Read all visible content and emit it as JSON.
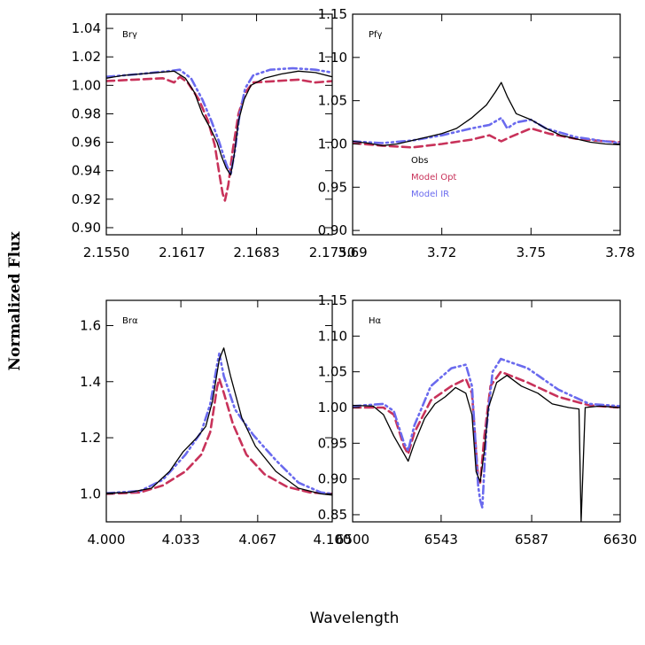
{
  "figure": {
    "ylabel": "Normalized Flux",
    "xlabel": "Wavelength"
  },
  "colors": {
    "obs": "#000000",
    "opt": "#c8325a",
    "ir": "#6a6aee"
  },
  "legend": {
    "obs": "Obs",
    "opt": "Model Opt",
    "ir": "Model IR"
  },
  "chart_data": [
    {
      "type": "line",
      "label": "Brγ",
      "xlim": [
        2.155,
        2.175
      ],
      "ylim": [
        0.895,
        1.05
      ],
      "xticks": [
        "2.1550",
        "2.1617",
        "2.1683",
        "2.1750"
      ],
      "xtick_values": [
        2.155,
        2.1617,
        2.1683,
        2.175
      ],
      "yticks": [
        "0.90",
        "0.92",
        "0.94",
        "0.96",
        "0.98",
        "1.00",
        "1.02",
        "1.04"
      ],
      "ytick_values": [
        0.9,
        0.92,
        0.94,
        0.96,
        0.98,
        1.0,
        1.02,
        1.04
      ],
      "series": [
        {
          "id": "obs",
          "points": [
            [
              2.155,
              1.005
            ],
            [
              2.1565,
              1.007
            ],
            [
              2.158,
              1.008
            ],
            [
              2.1595,
              1.009
            ],
            [
              2.161,
              1.01
            ],
            [
              2.162,
              1.005
            ],
            [
              2.1628,
              0.995
            ],
            [
              2.1635,
              0.98
            ],
            [
              2.1642,
              0.97
            ],
            [
              2.1648,
              0.96
            ],
            [
              2.1652,
              0.95
            ],
            [
              2.1656,
              0.942
            ],
            [
              2.166,
              0.937
            ],
            [
              2.1663,
              0.95
            ],
            [
              2.1667,
              0.975
            ],
            [
              2.1672,
              0.99
            ],
            [
              2.1678,
              1.0
            ],
            [
              2.169,
              1.005
            ],
            [
              2.1705,
              1.008
            ],
            [
              2.172,
              1.01
            ],
            [
              2.1735,
              1.009
            ],
            [
              2.175,
              1.006
            ]
          ]
        },
        {
          "id": "opt",
          "points": [
            [
              2.155,
              1.003
            ],
            [
              2.1575,
              1.004
            ],
            [
              2.16,
              1.005
            ],
            [
              2.161,
              1.002
            ],
            [
              2.1615,
              1.006
            ],
            [
              2.1622,
              1.002
            ],
            [
              2.1632,
              0.99
            ],
            [
              2.164,
              0.975
            ],
            [
              2.1646,
              0.958
            ],
            [
              2.165,
              0.938
            ],
            [
              2.1653,
              0.924
            ],
            [
              2.1655,
              0.919
            ],
            [
              2.1658,
              0.93
            ],
            [
              2.1662,
              0.955
            ],
            [
              2.1667,
              0.98
            ],
            [
              2.1673,
              0.995
            ],
            [
              2.168,
              1.002
            ],
            [
              2.17,
              1.003
            ],
            [
              2.172,
              1.004
            ],
            [
              2.1735,
              1.002
            ],
            [
              2.175,
              1.003
            ]
          ]
        },
        {
          "id": "ir",
          "points": [
            [
              2.155,
              1.006
            ],
            [
              2.158,
              1.008
            ],
            [
              2.1605,
              1.01
            ],
            [
              2.1615,
              1.011
            ],
            [
              2.1625,
              1.005
            ],
            [
              2.1635,
              0.99
            ],
            [
              2.1643,
              0.975
            ],
            [
              2.165,
              0.96
            ],
            [
              2.1656,
              0.945
            ],
            [
              2.166,
              0.937
            ],
            [
              2.1664,
              0.955
            ],
            [
              2.1668,
              0.98
            ],
            [
              2.1673,
              0.998
            ],
            [
              2.168,
              1.007
            ],
            [
              2.1695,
              1.011
            ],
            [
              2.1715,
              1.012
            ],
            [
              2.1735,
              1.011
            ],
            [
              2.175,
              1.009
            ]
          ]
        }
      ]
    },
    {
      "type": "line",
      "label": "Pfγ",
      "xlim": [
        3.69,
        3.78
      ],
      "ylim": [
        0.895,
        1.15
      ],
      "xticks": [
        "3.69",
        "3.72",
        "3.75",
        "3.78"
      ],
      "xtick_values": [
        3.69,
        3.72,
        3.75,
        3.78
      ],
      "yticks": [
        "0.90",
        "0.95",
        "1.00",
        "1.05",
        "1.10",
        "1.15"
      ],
      "ytick_values": [
        0.9,
        0.95,
        1.0,
        1.05,
        1.1,
        1.15
      ],
      "series": [
        {
          "id": "obs",
          "points": [
            [
              3.69,
              1.003
            ],
            [
              3.695,
              1.001
            ],
            [
              3.7,
              0.998
            ],
            [
              3.705,
              1.0
            ],
            [
              3.71,
              1.004
            ],
            [
              3.715,
              1.008
            ],
            [
              3.72,
              1.012
            ],
            [
              3.725,
              1.018
            ],
            [
              3.73,
              1.03
            ],
            [
              3.735,
              1.045
            ],
            [
              3.738,
              1.06
            ],
            [
              3.74,
              1.071
            ],
            [
              3.742,
              1.055
            ],
            [
              3.745,
              1.035
            ],
            [
              3.75,
              1.028
            ],
            [
              3.755,
              1.018
            ],
            [
              3.76,
              1.01
            ],
            [
              3.765,
              1.006
            ],
            [
              3.77,
              1.002
            ],
            [
              3.775,
              1.0
            ],
            [
              3.78,
              0.999
            ]
          ]
        },
        {
          "id": "opt",
          "points": [
            [
              3.69,
              1.001
            ],
            [
              3.7,
              0.998
            ],
            [
              3.71,
              0.996
            ],
            [
              3.72,
              1.0
            ],
            [
              3.73,
              1.005
            ],
            [
              3.736,
              1.01
            ],
            [
              3.74,
              1.003
            ],
            [
              3.743,
              1.008
            ],
            [
              3.75,
              1.018
            ],
            [
              3.756,
              1.012
            ],
            [
              3.765,
              1.006
            ],
            [
              3.775,
              1.003
            ],
            [
              3.78,
              1.002
            ]
          ]
        },
        {
          "id": "ir",
          "points": [
            [
              3.69,
              1.003
            ],
            [
              3.7,
              1.001
            ],
            [
              3.71,
              1.004
            ],
            [
              3.72,
              1.01
            ],
            [
              3.73,
              1.018
            ],
            [
              3.736,
              1.022
            ],
            [
              3.74,
              1.03
            ],
            [
              3.742,
              1.018
            ],
            [
              3.745,
              1.025
            ],
            [
              3.75,
              1.028
            ],
            [
              3.755,
              1.018
            ],
            [
              3.765,
              1.008
            ],
            [
              3.775,
              1.003
            ],
            [
              3.78,
              1.001
            ]
          ]
        }
      ]
    },
    {
      "type": "line",
      "label": "Brα",
      "xlim": [
        4.0,
        4.1
      ],
      "ylim": [
        0.9,
        1.69
      ],
      "xticks": [
        "4.000",
        "4.033",
        "4.067",
        "4.100"
      ],
      "xtick_values": [
        4.0,
        4.033,
        4.067,
        4.1
      ],
      "yticks": [
        "1.0",
        "1.2",
        "1.4",
        "1.6"
      ],
      "ytick_values": [
        1.0,
        1.2,
        1.4,
        1.6
      ],
      "series": [
        {
          "id": "obs",
          "points": [
            [
              4.0,
              1.002
            ],
            [
              4.01,
              1.005
            ],
            [
              4.02,
              1.02
            ],
            [
              4.028,
              1.08
            ],
            [
              4.034,
              1.15
            ],
            [
              4.04,
              1.2
            ],
            [
              4.044,
              1.24
            ],
            [
              4.047,
              1.33
            ],
            [
              4.05,
              1.48
            ],
            [
              4.052,
              1.52
            ],
            [
              4.055,
              1.42
            ],
            [
              4.06,
              1.27
            ],
            [
              4.066,
              1.17
            ],
            [
              4.075,
              1.08
            ],
            [
              4.085,
              1.02
            ],
            [
              4.095,
              1.0
            ],
            [
              4.1,
              0.995
            ]
          ]
        },
        {
          "id": "opt",
          "points": [
            [
              4.0,
              1.0
            ],
            [
              4.015,
              1.005
            ],
            [
              4.025,
              1.03
            ],
            [
              4.035,
              1.08
            ],
            [
              4.042,
              1.14
            ],
            [
              4.046,
              1.22
            ],
            [
              4.049,
              1.38
            ],
            [
              4.05,
              1.41
            ],
            [
              4.052,
              1.36
            ],
            [
              4.056,
              1.25
            ],
            [
              4.062,
              1.14
            ],
            [
              4.07,
              1.07
            ],
            [
              4.08,
              1.025
            ],
            [
              4.09,
              1.005
            ],
            [
              4.1,
              1.0
            ]
          ]
        },
        {
          "id": "ir",
          "points": [
            [
              4.0,
              1.002
            ],
            [
              4.015,
              1.01
            ],
            [
              4.025,
              1.05
            ],
            [
              4.035,
              1.14
            ],
            [
              4.042,
              1.22
            ],
            [
              4.046,
              1.32
            ],
            [
              4.049,
              1.46
            ],
            [
              4.05,
              1.5
            ],
            [
              4.052,
              1.42
            ],
            [
              4.057,
              1.3
            ],
            [
              4.065,
              1.21
            ],
            [
              4.075,
              1.12
            ],
            [
              4.085,
              1.04
            ],
            [
              4.095,
              1.005
            ],
            [
              4.1,
              1.0
            ]
          ]
        }
      ]
    },
    {
      "type": "line",
      "label": "Hα",
      "xlim": [
        6500,
        6630
      ],
      "ylim": [
        0.84,
        1.15
      ],
      "xticks": [
        "6500",
        "6543",
        "6587",
        "6630"
      ],
      "xtick_values": [
        6500,
        6543,
        6587,
        6630
      ],
      "yticks": [
        "0.85",
        "0.90",
        "0.95",
        "1.00",
        "1.05",
        "1.10",
        "1.15"
      ],
      "ytick_values": [
        0.85,
        0.9,
        0.95,
        1.0,
        1.05,
        1.1,
        1.15
      ],
      "series": [
        {
          "id": "obs",
          "points": [
            [
              6500,
              1.003
            ],
            [
              6510,
              1.002
            ],
            [
              6515,
              0.99
            ],
            [
              6520,
              0.96
            ],
            [
              6525,
              0.935
            ],
            [
              6527,
              0.925
            ],
            [
              6530,
              0.95
            ],
            [
              6535,
              0.985
            ],
            [
              6540,
              1.005
            ],
            [
              6545,
              1.015
            ],
            [
              6550,
              1.028
            ],
            [
              6555,
              1.02
            ],
            [
              6558,
              0.99
            ],
            [
              6560,
              0.91
            ],
            [
              6562,
              0.896
            ],
            [
              6564,
              0.94
            ],
            [
              6566,
              1.0
            ],
            [
              6570,
              1.035
            ],
            [
              6575,
              1.045
            ],
            [
              6582,
              1.03
            ],
            [
              6590,
              1.02
            ],
            [
              6597,
              1.005
            ],
            [
              6605,
              1.0
            ],
            [
              6610,
              0.998
            ],
            [
              6611,
              0.84
            ],
            [
              6613,
              1.0
            ],
            [
              6620,
              1.002
            ],
            [
              6630,
              1.0
            ]
          ]
        },
        {
          "id": "opt",
          "points": [
            [
              6500,
              1.0
            ],
            [
              6515,
              1.0
            ],
            [
              6520,
              0.99
            ],
            [
              6525,
              0.945
            ],
            [
              6527,
              0.935
            ],
            [
              6530,
              0.965
            ],
            [
              6538,
              1.01
            ],
            [
              6548,
              1.03
            ],
            [
              6555,
              1.04
            ],
            [
              6558,
              1.02
            ],
            [
              6561,
              0.9
            ],
            [
              6562,
              0.895
            ],
            [
              6564,
              0.96
            ],
            [
              6567,
              1.03
            ],
            [
              6572,
              1.05
            ],
            [
              6585,
              1.035
            ],
            [
              6600,
              1.015
            ],
            [
              6615,
              1.003
            ],
            [
              6630,
              1.0
            ]
          ]
        },
        {
          "id": "ir",
          "points": [
            [
              6500,
              1.002
            ],
            [
              6515,
              1.005
            ],
            [
              6520,
              0.995
            ],
            [
              6525,
              0.95
            ],
            [
              6527,
              0.94
            ],
            [
              6530,
              0.975
            ],
            [
              6538,
              1.03
            ],
            [
              6548,
              1.055
            ],
            [
              6555,
              1.06
            ],
            [
              6558,
              1.03
            ],
            [
              6561,
              0.89
            ],
            [
              6562,
              0.87
            ],
            [
              6563,
              0.86
            ],
            [
              6565,
              0.97
            ],
            [
              6568,
              1.05
            ],
            [
              6572,
              1.068
            ],
            [
              6585,
              1.055
            ],
            [
              6600,
              1.025
            ],
            [
              6615,
              1.005
            ],
            [
              6630,
              1.002
            ]
          ]
        }
      ]
    }
  ]
}
